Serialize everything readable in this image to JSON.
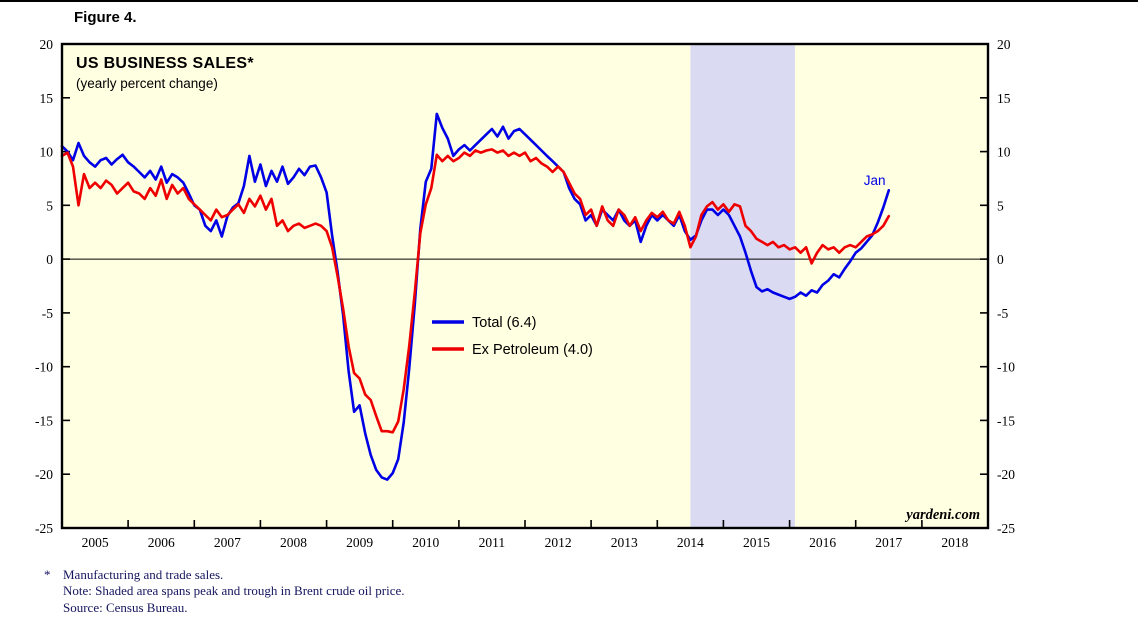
{
  "figure_label": "Figure 4.",
  "chart_data": {
    "type": "line",
    "title": "US BUSINESS SALES*",
    "subtitle": "(yearly percent change)",
    "xlabel": "",
    "ylabel": "yearly percent change",
    "xlim": [
      2004.5,
      2018.5
    ],
    "ylim": [
      -25,
      20
    ],
    "y_ticks": [
      -25,
      -20,
      -15,
      -10,
      -5,
      0,
      5,
      10,
      15,
      20
    ],
    "x_year_labels": [
      2005,
      2006,
      2007,
      2008,
      2009,
      2010,
      2011,
      2012,
      2013,
      2014,
      2015,
      2016,
      2017,
      2018
    ],
    "x_start": 2004.5,
    "x_step": 0.0833333,
    "plot_bg": "#ffffe2",
    "grid": "off",
    "legend_position": "center-left-inside",
    "shaded_region": {
      "from": 2014.0,
      "to": 2015.58,
      "color": "#dadaf2",
      "meaning": "Shaded area spans peak and trough in Brent crude oil price"
    },
    "series": [
      {
        "name": "Total (6.4)",
        "color": "#0000e6",
        "latest_value": 6.4,
        "values": [
          10.5,
          10.0,
          9.2,
          10.8,
          9.6,
          9.0,
          8.6,
          9.2,
          9.4,
          8.8,
          9.3,
          9.7,
          9.0,
          8.6,
          8.1,
          7.6,
          8.2,
          7.4,
          8.6,
          7.1,
          7.9,
          7.6,
          7.1,
          6.1,
          5.0,
          4.6,
          3.1,
          2.6,
          3.6,
          2.1,
          4.0,
          4.8,
          5.2,
          6.8,
          9.6,
          7.2,
          8.8,
          6.8,
          8.2,
          7.2,
          8.6,
          7.0,
          7.6,
          8.4,
          7.8,
          8.6,
          8.7,
          7.6,
          6.2,
          2.2,
          -1.2,
          -5.2,
          -10.4,
          -14.2,
          -13.6,
          -16.2,
          -18.2,
          -19.6,
          -20.3,
          -20.5,
          -19.9,
          -18.6,
          -15.2,
          -10.2,
          -4.2,
          2.8,
          7.2,
          8.4,
          13.5,
          12.2,
          11.2,
          9.6,
          10.2,
          10.6,
          10.1,
          10.6,
          11.1,
          11.6,
          12.1,
          11.4,
          12.3,
          11.2,
          11.9,
          12.1,
          11.6,
          11.1,
          10.6,
          10.1,
          9.6,
          9.1,
          8.6,
          8.1,
          6.6,
          5.6,
          5.1,
          3.6,
          4.1,
          3.1,
          4.6,
          4.1,
          3.6,
          4.6,
          3.6,
          3.1,
          3.6,
          1.6,
          3.1,
          4.1,
          3.6,
          4.1,
          3.6,
          3.1,
          4.1,
          2.6,
          1.8,
          2.2,
          3.6,
          4.6,
          4.6,
          4.1,
          4.6,
          4.1,
          3.1,
          2.1,
          0.6,
          -1.1,
          -2.6,
          -3.0,
          -2.8,
          -3.1,
          -3.3,
          -3.5,
          -3.7,
          -3.5,
          -3.1,
          -3.4,
          -2.9,
          -3.1,
          -2.4,
          -2.0,
          -1.4,
          -1.7,
          -0.9,
          -0.2,
          0.6,
          1.0,
          1.6,
          2.2,
          3.4,
          4.8,
          6.4
        ]
      },
      {
        "name": "Ex Petroleum (4.0)",
        "color": "#ee0000",
        "latest_value": 4.0,
        "values": [
          9.6,
          9.9,
          8.6,
          5.0,
          7.9,
          6.6,
          7.1,
          6.6,
          7.3,
          6.9,
          6.1,
          6.6,
          7.1,
          6.3,
          6.1,
          5.6,
          6.6,
          5.9,
          7.4,
          5.6,
          6.9,
          6.1,
          6.6,
          5.6,
          5.1,
          4.6,
          4.1,
          3.6,
          4.6,
          3.9,
          4.1,
          4.6,
          5.1,
          4.3,
          5.6,
          4.9,
          5.9,
          4.6,
          5.6,
          3.1,
          3.6,
          2.6,
          3.1,
          3.3,
          2.9,
          3.1,
          3.3,
          3.1,
          2.6,
          1.1,
          -1.6,
          -4.6,
          -8.1,
          -10.6,
          -11.1,
          -12.6,
          -13.1,
          -14.6,
          -16.0,
          -16.0,
          -16.1,
          -15.1,
          -12.1,
          -8.1,
          -3.1,
          2.4,
          5.1,
          6.6,
          9.7,
          9.1,
          9.6,
          9.1,
          9.4,
          9.9,
          9.6,
          10.1,
          9.9,
          10.1,
          10.2,
          9.9,
          10.1,
          9.6,
          9.9,
          9.6,
          9.9,
          9.1,
          9.4,
          8.9,
          8.6,
          8.1,
          8.6,
          8.1,
          7.1,
          6.1,
          5.6,
          4.1,
          4.6,
          3.1,
          4.9,
          3.6,
          3.1,
          4.6,
          4.1,
          3.1,
          3.9,
          2.6,
          3.6,
          4.3,
          3.9,
          4.4,
          3.6,
          3.3,
          4.4,
          3.1,
          1.1,
          2.1,
          4.1,
          4.9,
          5.3,
          4.6,
          5.1,
          4.4,
          5.1,
          4.9,
          3.1,
          2.6,
          1.9,
          1.6,
          1.3,
          1.6,
          1.1,
          1.3,
          0.9,
          1.1,
          0.6,
          1.1,
          -0.4,
          0.6,
          1.3,
          0.9,
          1.1,
          0.6,
          1.1,
          1.3,
          1.1,
          1.6,
          2.1,
          2.3,
          2.6,
          3.1,
          4.0
        ]
      }
    ],
    "annotations": [
      {
        "text": "Jan",
        "x": 2016.62,
        "y": 6.9,
        "color": "#0000e6"
      }
    ],
    "watermark": "yardeni.com"
  },
  "footnotes": {
    "star": "*",
    "line1": "Manufacturing and trade sales.",
    "line2": "Note: Shaded area spans peak and trough in Brent crude oil price.",
    "line3": "Source: Census Bureau."
  }
}
